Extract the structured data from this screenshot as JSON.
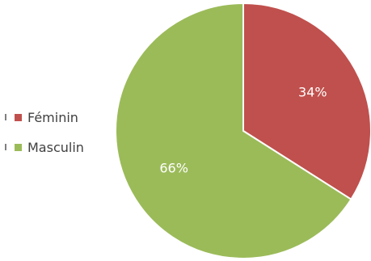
{
  "chart_data": {
    "type": "pie",
    "categories": [
      "Féminin",
      "Masculin"
    ],
    "values": [
      34,
      66
    ],
    "data_labels": [
      "34%",
      "66%"
    ],
    "colors": [
      "#c0504d",
      "#9bbb59"
    ],
    "title": "",
    "legend_position": "left"
  }
}
